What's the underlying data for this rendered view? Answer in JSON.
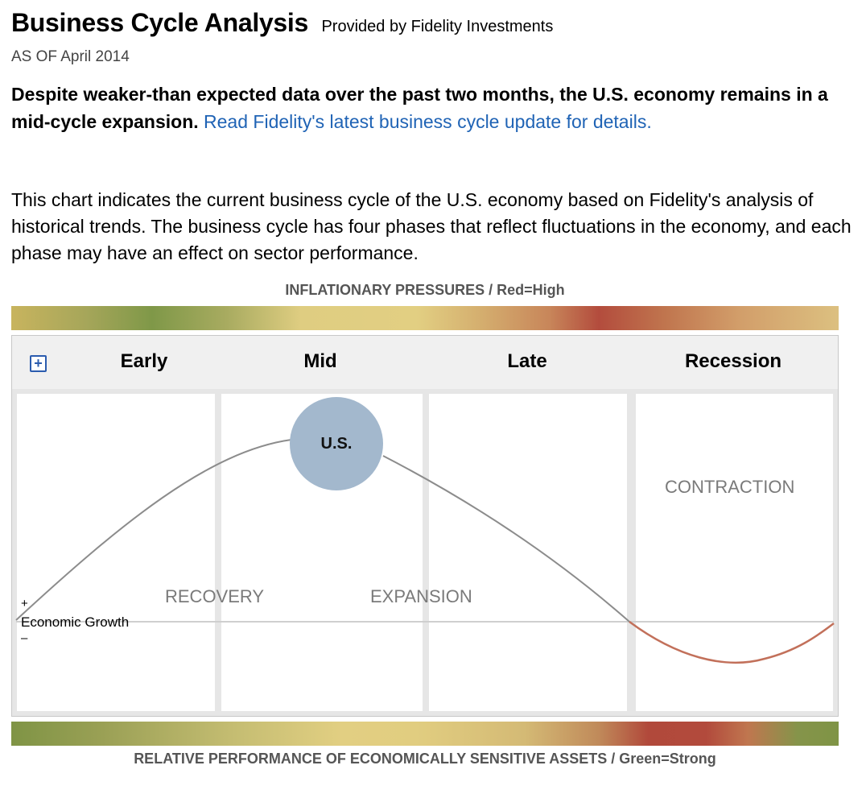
{
  "header": {
    "title": "Business Cycle Analysis",
    "provider": "Provided by Fidelity Investments",
    "as_of": "AS OF April 2014"
  },
  "lead": {
    "bold_text": "Despite weaker-than expected data over the past two months, the U.S. economy remains in a mid-cycle expansion.",
    "link_text": "Read Fidelity's latest business cycle update for details."
  },
  "description": "This chart indicates the current business cycle of the U.S. economy based on Fidelity's analysis of historical trends. The business cycle has four phases that reflect fluctuations in the economy, and each phase may have an effect on sector performance.",
  "inflation_bar": {
    "label": "INFLATIONARY PRESSURES / Red=High"
  },
  "performance_bar": {
    "label": "RELATIVE PERFORMANCE OF ECONOMICALLY SENSITIVE ASSETS / Green=Strong"
  },
  "phases": [
    "Early",
    "Mid",
    "Late",
    "Recession"
  ],
  "regions": {
    "recovery": "RECOVERY",
    "expansion": "EXPANSION",
    "contraction": "CONTRACTION"
  },
  "axis": {
    "plus": "+",
    "label": "Economic Growth",
    "minus": "–"
  },
  "marker": {
    "label": "U.S.",
    "phase": "Mid"
  },
  "colors": {
    "curve_growth": "#8c8c8c",
    "curve_contraction": "#c2705a",
    "bubble": "#a3b8cd",
    "link": "#1f63b5",
    "expand_icon": "#2b5cae"
  }
}
